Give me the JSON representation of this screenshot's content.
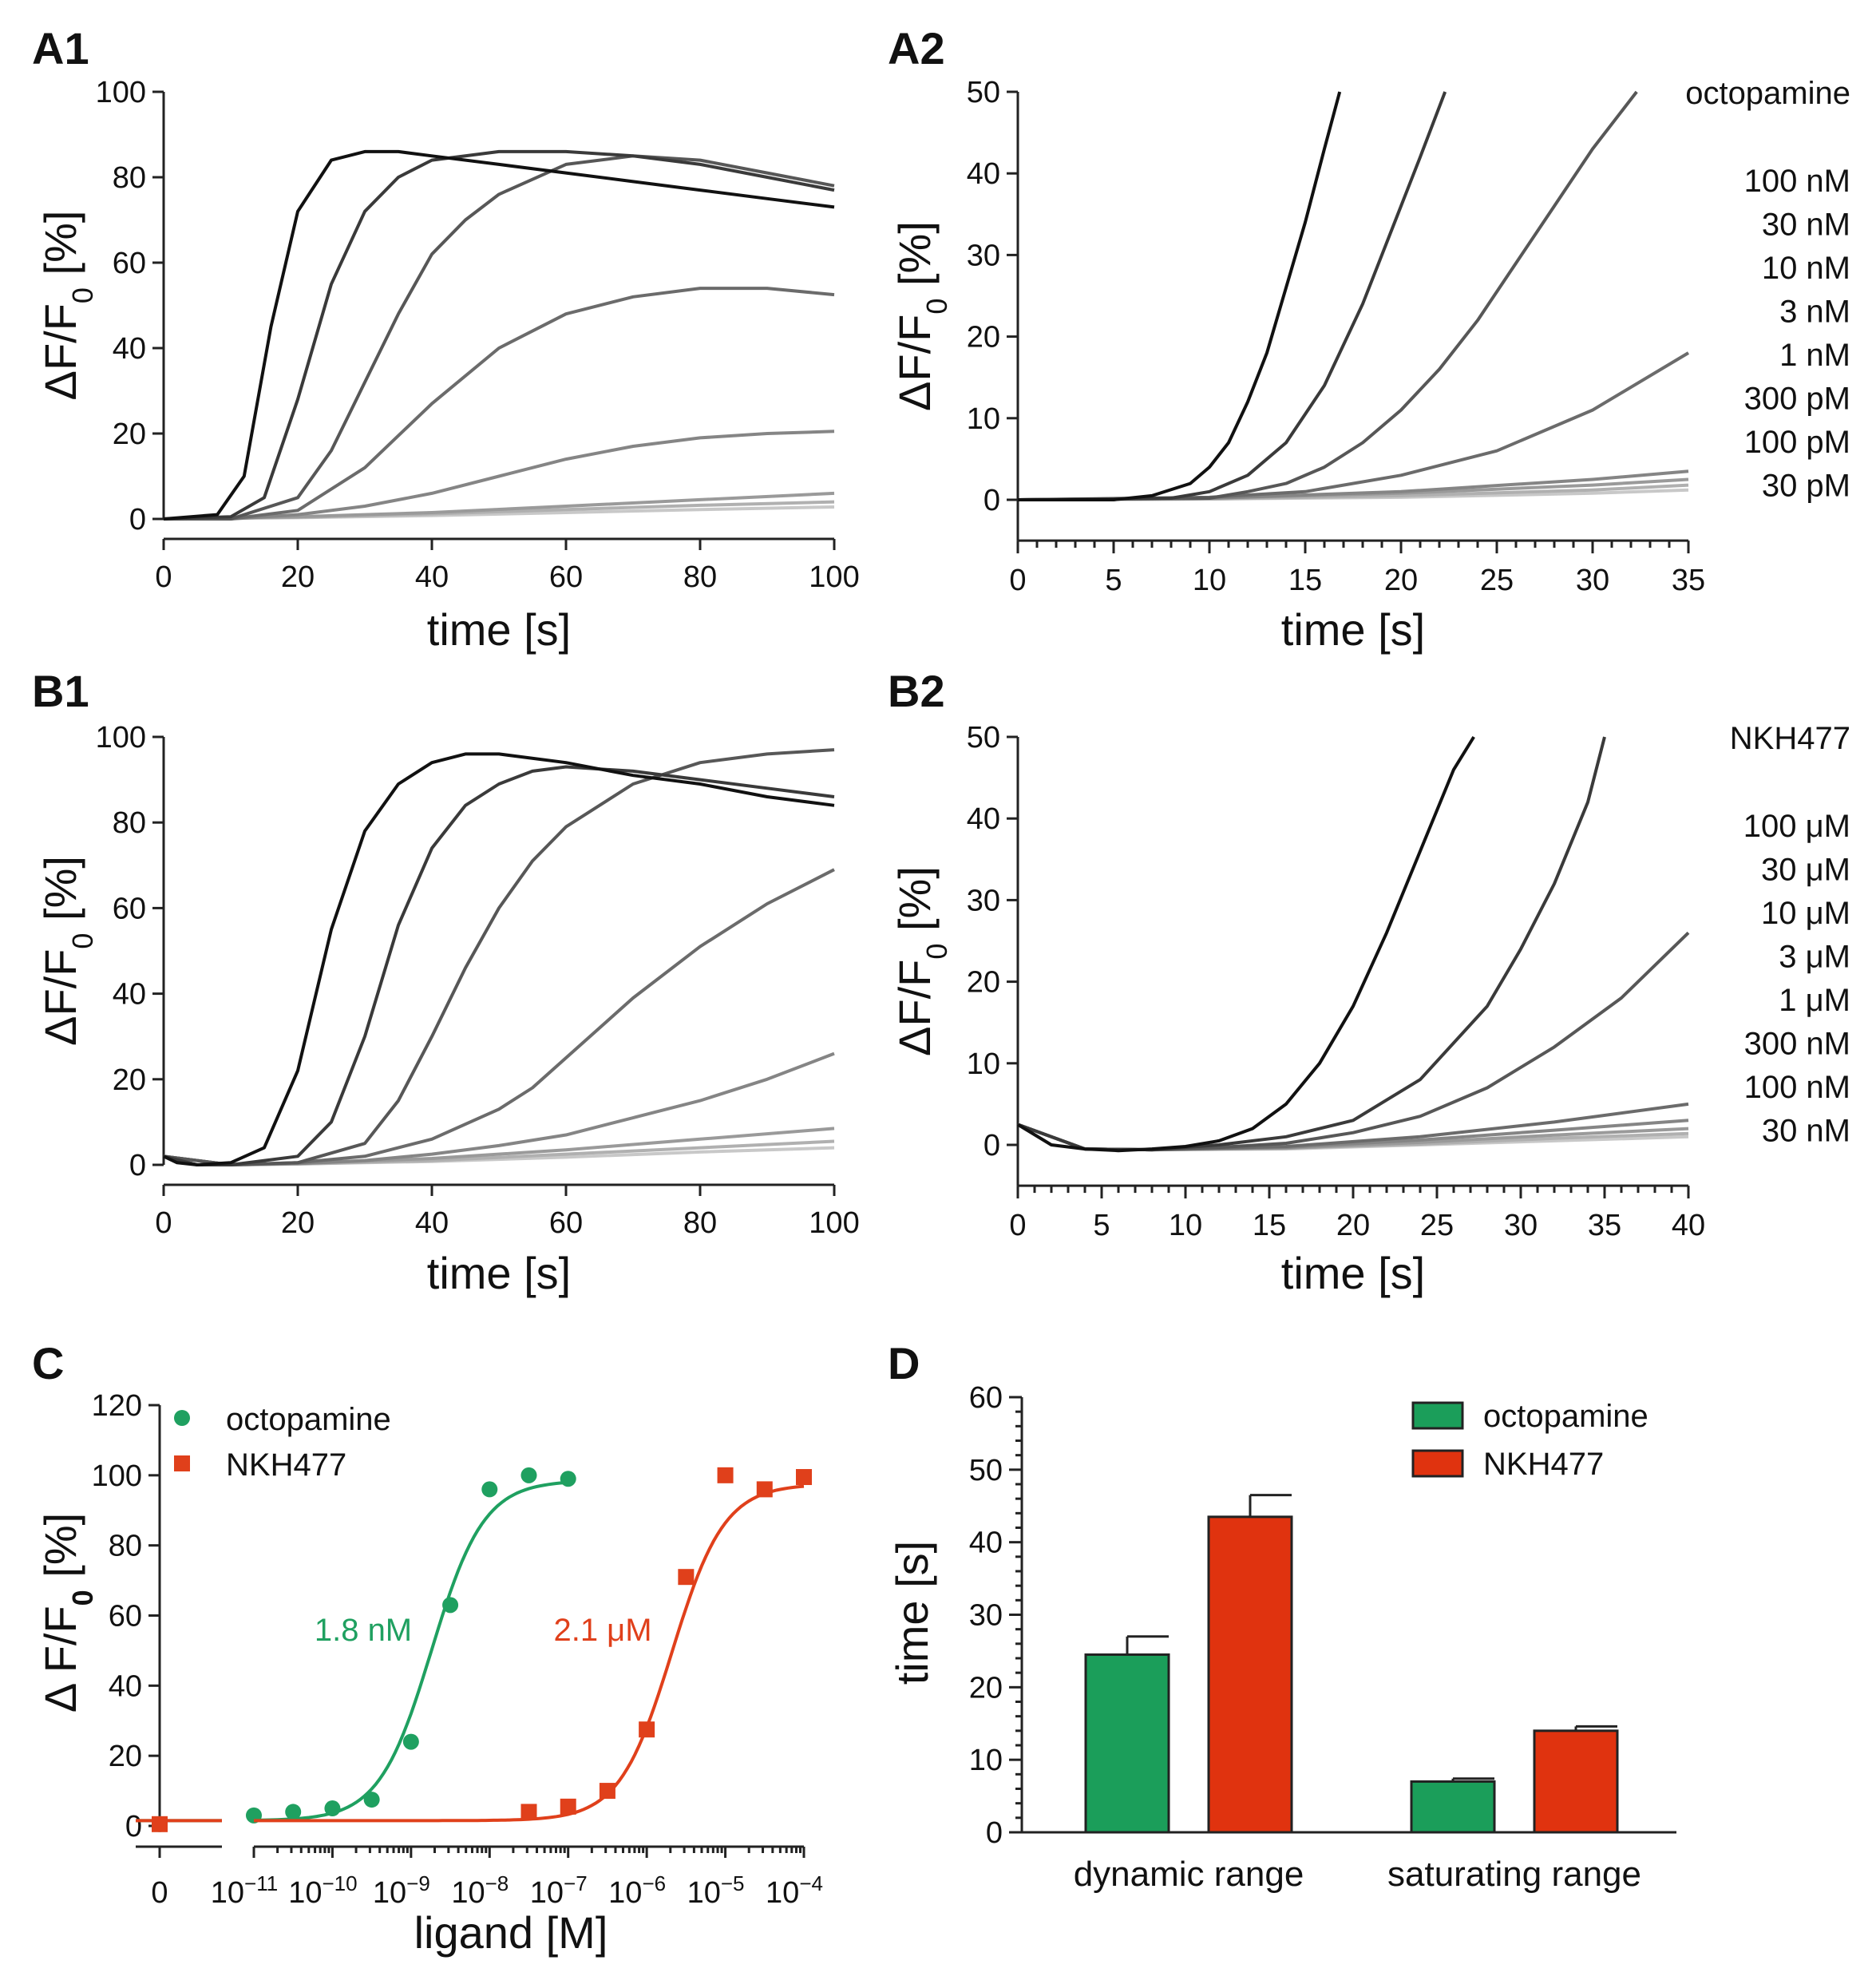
{
  "chart_data": [
    {
      "panel": "A1",
      "type": "line",
      "xlabel": "time [s]",
      "ylabel": "ΔF/F0 [%]",
      "xlim": [
        0,
        100
      ],
      "ylim": [
        0,
        100
      ],
      "xticks": [
        0,
        20,
        40,
        60,
        80,
        100
      ],
      "yticks": [
        0,
        20,
        40,
        60,
        80,
        100
      ],
      "series": [
        {
          "name": "c1",
          "color": "#111111",
          "x": [
            0,
            8,
            12,
            16,
            20,
            25,
            30,
            35,
            40,
            50,
            60,
            70,
            80,
            90,
            100
          ],
          "y": [
            0,
            1,
            10,
            45,
            72,
            84,
            86,
            86,
            85,
            83,
            81,
            79,
            77,
            75,
            73
          ]
        },
        {
          "name": "c2",
          "color": "#3a3a3a",
          "x": [
            0,
            10,
            15,
            20,
            25,
            30,
            35,
            40,
            50,
            60,
            70,
            80,
            90,
            100
          ],
          "y": [
            0,
            0.5,
            5,
            28,
            55,
            72,
            80,
            84,
            86,
            86,
            85,
            83,
            80,
            77
          ]
        },
        {
          "name": "c3",
          "color": "#575757",
          "x": [
            0,
            10,
            20,
            25,
            30,
            35,
            40,
            45,
            50,
            60,
            70,
            80,
            90,
            100
          ],
          "y": [
            0,
            0,
            5,
            16,
            32,
            48,
            62,
            70,
            76,
            83,
            85,
            84,
            81,
            78
          ]
        },
        {
          "name": "c4",
          "color": "#6b6b6b",
          "x": [
            0,
            10,
            20,
            30,
            40,
            50,
            60,
            70,
            80,
            90,
            100
          ],
          "y": [
            0,
            0,
            2,
            12,
            27,
            40,
            48,
            52,
            54,
            54,
            52.5
          ]
        },
        {
          "name": "c5",
          "color": "#858585",
          "x": [
            0,
            10,
            20,
            30,
            40,
            50,
            60,
            70,
            80,
            90,
            100
          ],
          "y": [
            0,
            0,
            1,
            3,
            6,
            10,
            14,
            17,
            19,
            20,
            20.5
          ]
        },
        {
          "name": "c6",
          "color": "#9a9a9a",
          "x": [
            0,
            20,
            40,
            60,
            80,
            100
          ],
          "y": [
            0,
            0.5,
            1.5,
            3,
            4.5,
            6
          ]
        },
        {
          "name": "c7",
          "color": "#b0b0b0",
          "x": [
            0,
            20,
            40,
            60,
            80,
            100
          ],
          "y": [
            0,
            0.4,
            1.2,
            2.2,
            3.2,
            4
          ]
        },
        {
          "name": "c8",
          "color": "#c8c8c8",
          "x": [
            0,
            20,
            40,
            60,
            80,
            100
          ],
          "y": [
            0,
            0.3,
            0.8,
            1.5,
            2.2,
            2.8
          ]
        }
      ]
    },
    {
      "panel": "A2",
      "type": "line",
      "xlabel": "time [s]",
      "ylabel": "ΔF/F0 [%]",
      "xlim": [
        0,
        35
      ],
      "ylim": [
        -5,
        50
      ],
      "xticks": [
        0,
        5,
        10,
        15,
        20,
        25,
        30,
        35
      ],
      "yticks": [
        0,
        10,
        20,
        30,
        40,
        50
      ],
      "legend_title": "octopamine",
      "legend_items": [
        "100 nM",
        "30 nM",
        "10 nM",
        "3 nM",
        "1 nM",
        "300 pM",
        "100 pM",
        "30 pM"
      ],
      "series": [
        {
          "name": "100 nM",
          "color": "#111111",
          "x": [
            0,
            5,
            7,
            9,
            10,
            11,
            12,
            13,
            14,
            15,
            16,
            16.8
          ],
          "y": [
            0,
            0,
            0.5,
            2,
            4,
            7,
            12,
            18,
            26,
            34,
            43,
            50
          ]
        },
        {
          "name": "30 nM",
          "color": "#3a3a3a",
          "x": [
            0,
            8,
            10,
            12,
            14,
            16,
            18,
            20,
            21,
            22.3
          ],
          "y": [
            0,
            0.2,
            1,
            3,
            7,
            14,
            24,
            36,
            42,
            50
          ]
        },
        {
          "name": "10 nM",
          "color": "#575757",
          "x": [
            0,
            10,
            12,
            14,
            16,
            18,
            20,
            22,
            24,
            26,
            28,
            30,
            32.3
          ],
          "y": [
            0,
            0.2,
            1,
            2,
            4,
            7,
            11,
            16,
            22,
            29,
            36,
            43,
            50
          ]
        },
        {
          "name": "3 nM",
          "color": "#6b6b6b",
          "x": [
            0,
            10,
            15,
            20,
            25,
            30,
            35
          ],
          "y": [
            0,
            0.3,
            1,
            3,
            6,
            11,
            18
          ]
        },
        {
          "name": "1 nM",
          "color": "#858585",
          "x": [
            0,
            10,
            20,
            30,
            35
          ],
          "y": [
            0,
            0.2,
            1,
            2.5,
            3.5
          ]
        },
        {
          "name": "300 pM",
          "color": "#9a9a9a",
          "x": [
            0,
            10,
            20,
            30,
            35
          ],
          "y": [
            0,
            0.2,
            0.8,
            1.8,
            2.5
          ]
        },
        {
          "name": "100 pM",
          "color": "#b0b0b0",
          "x": [
            0,
            10,
            20,
            30,
            35
          ],
          "y": [
            0,
            0.1,
            0.5,
            1.2,
            1.8
          ]
        },
        {
          "name": "30 pM",
          "color": "#c8c8c8",
          "x": [
            0,
            10,
            20,
            30,
            35
          ],
          "y": [
            0,
            0.1,
            0.3,
            0.8,
            1.2
          ]
        }
      ]
    },
    {
      "panel": "B1",
      "type": "line",
      "xlabel": "time [s]",
      "ylabel": "ΔF/F0 [%]",
      "xlim": [
        0,
        100
      ],
      "ylim": [
        0,
        100
      ],
      "xticks": [
        0,
        20,
        40,
        60,
        80,
        100
      ],
      "yticks": [
        0,
        20,
        40,
        60,
        80,
        100
      ],
      "series": [
        {
          "name": "c1",
          "color": "#111111",
          "x": [
            0,
            2,
            5,
            10,
            15,
            20,
            25,
            30,
            35,
            40,
            45,
            50,
            60,
            70,
            80,
            90,
            100
          ],
          "y": [
            2,
            0.5,
            0,
            0.5,
            4,
            22,
            55,
            78,
            89,
            94,
            96,
            96,
            94,
            91,
            89,
            86,
            84
          ]
        },
        {
          "name": "c2",
          "color": "#3a3a3a",
          "x": [
            0,
            5,
            10,
            20,
            25,
            30,
            35,
            40,
            45,
            50,
            55,
            60,
            70,
            80,
            90,
            100
          ],
          "y": [
            2,
            0,
            0,
            2,
            10,
            30,
            56,
            74,
            84,
            89,
            92,
            93,
            92,
            90,
            88,
            86
          ]
        },
        {
          "name": "c3",
          "color": "#575757",
          "x": [
            0,
            10,
            20,
            30,
            35,
            40,
            45,
            50,
            55,
            60,
            70,
            80,
            90,
            100
          ],
          "y": [
            2,
            0,
            0.5,
            5,
            15,
            30,
            46,
            60,
            71,
            79,
            89,
            94,
            96,
            97
          ]
        },
        {
          "name": "c4",
          "color": "#6b6b6b",
          "x": [
            0,
            10,
            20,
            30,
            40,
            50,
            55,
            60,
            70,
            80,
            90,
            100
          ],
          "y": [
            2,
            0,
            0.5,
            2,
            6,
            13,
            18,
            25,
            39,
            51,
            61,
            69
          ]
        },
        {
          "name": "c5",
          "color": "#858585",
          "x": [
            0,
            10,
            20,
            30,
            40,
            50,
            60,
            70,
            80,
            90,
            100
          ],
          "y": [
            2,
            0,
            0.3,
            1,
            2.5,
            4.5,
            7,
            11,
            15,
            20,
            26
          ]
        },
        {
          "name": "c6",
          "color": "#9a9a9a",
          "x": [
            0,
            10,
            20,
            40,
            60,
            80,
            100
          ],
          "y": [
            2,
            0,
            0.3,
            1.5,
            3.5,
            6,
            8.5
          ]
        },
        {
          "name": "c7",
          "color": "#b0b0b0",
          "x": [
            0,
            10,
            20,
            40,
            60,
            80,
            100
          ],
          "y": [
            2,
            0,
            0.2,
            1,
            2.5,
            4,
            5.5
          ]
        },
        {
          "name": "c8",
          "color": "#c8c8c8",
          "x": [
            0,
            10,
            20,
            40,
            60,
            80,
            100
          ],
          "y": [
            2,
            0,
            0.2,
            0.8,
            1.8,
            3,
            4
          ]
        }
      ]
    },
    {
      "panel": "B2",
      "type": "line",
      "xlabel": "time [s]",
      "ylabel": "ΔF/F0 [%]",
      "xlim": [
        0,
        40
      ],
      "ylim": [
        -5,
        50
      ],
      "xticks": [
        0,
        5,
        10,
        15,
        20,
        25,
        30,
        35,
        40
      ],
      "yticks": [
        0,
        10,
        20,
        30,
        40,
        50
      ],
      "legend_title": "NKH477",
      "legend_items": [
        "100 μM",
        "30 μM",
        "10 μM",
        "3 μM",
        "1 μM",
        "300 nM",
        "100 nM",
        "30 nM"
      ],
      "series": [
        {
          "name": "100 μM",
          "color": "#111111",
          "x": [
            0,
            2,
            4,
            6,
            8,
            10,
            12,
            14,
            16,
            18,
            20,
            22,
            24,
            26,
            27.2
          ],
          "y": [
            2.5,
            0,
            -0.5,
            -0.7,
            -0.5,
            -0.2,
            0.5,
            2,
            5,
            10,
            17,
            26,
            36,
            46,
            50
          ]
        },
        {
          "name": "30 μM",
          "color": "#3a3a3a",
          "x": [
            0,
            4,
            8,
            12,
            16,
            20,
            24,
            28,
            30,
            32,
            34,
            35
          ],
          "y": [
            2.5,
            -0.5,
            -0.6,
            0,
            1,
            3,
            8,
            17,
            24,
            32,
            42,
            50
          ]
        },
        {
          "name": "10 μM",
          "color": "#575757",
          "x": [
            0,
            4,
            8,
            12,
            16,
            20,
            24,
            28,
            32,
            36,
            40
          ],
          "y": [
            2.5,
            -0.5,
            -0.6,
            -0.3,
            0.2,
            1.5,
            3.5,
            7,
            12,
            18,
            26
          ]
        },
        {
          "name": "3 μM",
          "color": "#6b6b6b",
          "x": [
            0,
            4,
            8,
            16,
            24,
            32,
            40
          ],
          "y": [
            2.5,
            -0.5,
            -0.6,
            -0.2,
            1,
            2.8,
            5
          ]
        },
        {
          "name": "1 μM",
          "color": "#858585",
          "x": [
            0,
            4,
            8,
            16,
            24,
            32,
            40
          ],
          "y": [
            2.5,
            -0.5,
            -0.6,
            -0.3,
            0.6,
            1.8,
            3
          ]
        },
        {
          "name": "300 nM",
          "color": "#9a9a9a",
          "x": [
            0,
            4,
            8,
            16,
            24,
            32,
            40
          ],
          "y": [
            2.5,
            -0.5,
            -0.6,
            -0.4,
            0.3,
            1.2,
            2
          ]
        },
        {
          "name": "100 nM",
          "color": "#b0b0b0",
          "x": [
            0,
            4,
            8,
            16,
            24,
            32,
            40
          ],
          "y": [
            2.5,
            -0.5,
            -0.6,
            -0.4,
            0.1,
            0.8,
            1.4
          ]
        },
        {
          "name": "30 nM",
          "color": "#c8c8c8",
          "x": [
            0,
            4,
            8,
            16,
            24,
            32,
            40
          ],
          "y": [
            2.5,
            -0.5,
            -0.6,
            -0.5,
            0,
            0.5,
            1
          ]
        }
      ]
    },
    {
      "panel": "C",
      "type": "scatter",
      "xlabel": "ligand [M]",
      "ylabel": "Δ F/F0 [%]",
      "xlim_log10": [
        -11,
        -4
      ],
      "ylim": [
        0,
        120
      ],
      "yticks": [
        0,
        20,
        40,
        60,
        80,
        100,
        120
      ],
      "xtick_zero_label": "0",
      "xtick_base": "10",
      "xtick_exponents": [
        "−11",
        "−10",
        "−9",
        "−8",
        "−7",
        "−6",
        "−5",
        "−4"
      ],
      "xtick_values": [
        -11,
        -10,
        -9,
        -8,
        -7,
        -6,
        -5,
        -4
      ],
      "series": [
        {
          "name": "octopamine",
          "color": "#1fa060",
          "marker": "circle",
          "ec50_label": "1.8 nM",
          "log_ec50": -8.74,
          "bottom": 1.5,
          "top": 98.5,
          "hill": 1.3,
          "zero_y": 0.5,
          "log_x": [
            -11,
            -10.5,
            -10,
            -9.5,
            -9,
            -8.5,
            -8,
            -7.5,
            -7
          ],
          "y": [
            3,
            4,
            5,
            7.5,
            24,
            63,
            96,
            100,
            99
          ]
        },
        {
          "name": "NKH477",
          "color": "#e0401b",
          "marker": "square",
          "ec50_label": "2.1 μM",
          "log_ec50": -5.68,
          "bottom": 1.5,
          "top": 97.5,
          "hill": 1.3,
          "zero_y": 0.5,
          "log_x": [
            -7.5,
            -7,
            -6.5,
            -6,
            -5.5,
            -5,
            -4.5,
            -4
          ],
          "y": [
            4,
            5.5,
            10,
            27.5,
            71,
            100,
            96,
            99.5
          ]
        }
      ]
    },
    {
      "panel": "D",
      "type": "bar",
      "ylabel": "time [s]",
      "ylim": [
        0,
        60
      ],
      "yticks": [
        0,
        10,
        20,
        30,
        40,
        50,
        60
      ],
      "categories": [
        "dynamic range",
        "saturating range"
      ],
      "series": [
        {
          "name": "octopamine",
          "color": "#1b9e5a",
          "values": [
            24.5,
            7
          ],
          "errors": [
            2.5,
            0.4
          ]
        },
        {
          "name": "NKH477",
          "color": "#e0330f",
          "values": [
            43.5,
            14
          ],
          "errors": [
            3,
            0.6
          ]
        }
      ]
    }
  ]
}
